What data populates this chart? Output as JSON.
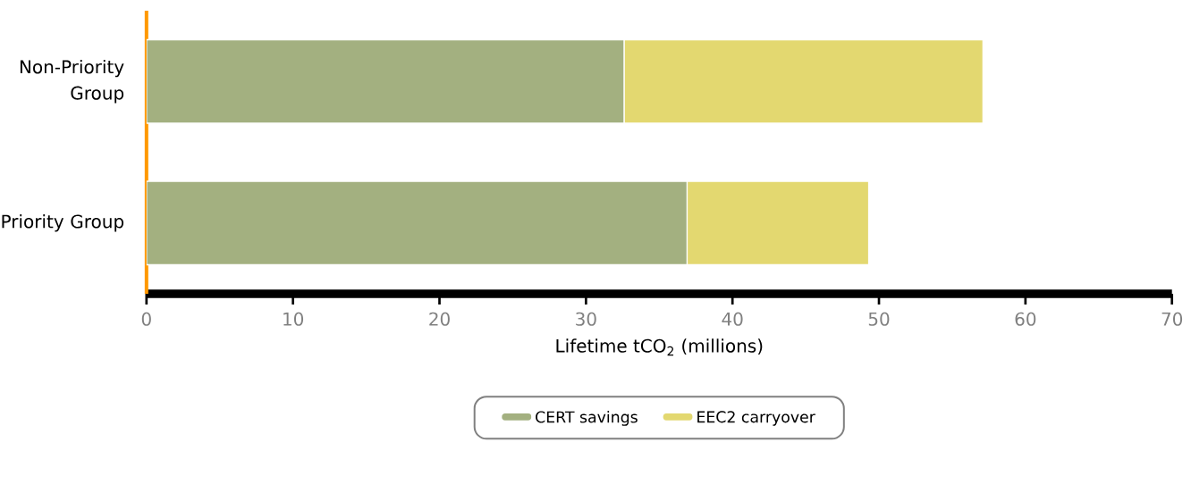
{
  "chart_data": {
    "type": "bar",
    "orientation": "horizontal",
    "stacked": true,
    "categories": [
      "Non-Priority Group",
      "Priority Group"
    ],
    "series": [
      {
        "name": "CERT savings",
        "color": "#a3b080",
        "values": [
          32.6,
          36.9
        ]
      },
      {
        "name": "EEC2 carryover",
        "color": "#e3d870",
        "values": [
          24.5,
          12.4
        ]
      }
    ],
    "xlabel": "Lifetime tCO$_{2}$ (millions)",
    "xlim": [
      0,
      70
    ],
    "xticks": [
      0,
      10,
      20,
      30,
      40,
      50,
      60,
      70
    ],
    "legend": "bottom"
  }
}
